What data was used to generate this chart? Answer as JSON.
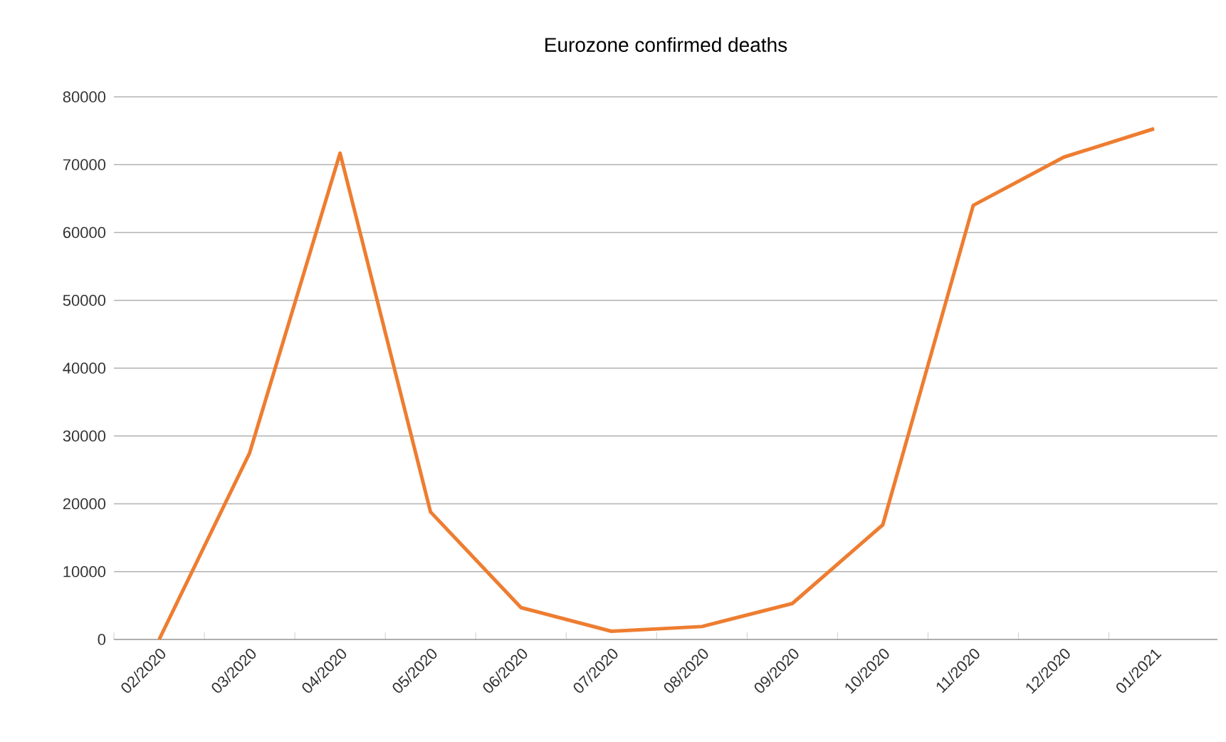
{
  "chart_data": {
    "type": "line",
    "title": "Eurozone confirmed deaths",
    "categories": [
      "02/2020",
      "03/2020",
      "04/2020",
      "05/2020",
      "06/2020",
      "07/2020",
      "08/2020",
      "09/2020",
      "10/2020",
      "11/2020",
      "12/2020",
      "01/2021"
    ],
    "series": [
      {
        "color": "#ee7d31",
        "values": [
          0,
          27500,
          71700,
          18800,
          4700,
          1200,
          1900,
          5300,
          16900,
          64000,
          71100,
          75300
        ]
      }
    ],
    "ylim": [
      0,
      80000
    ],
    "yticks": [
      0,
      10000,
      20000,
      30000,
      40000,
      50000,
      60000,
      70000,
      80000
    ],
    "grid": "y",
    "marker": "none",
    "line_style": "solid"
  }
}
